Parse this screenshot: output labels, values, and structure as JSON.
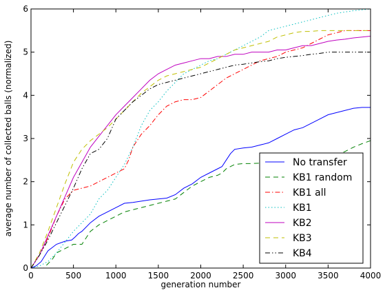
{
  "chart_data": {
    "type": "line",
    "title": "",
    "xlabel": "generation number",
    "ylabel": "average number of collected balls (normalized)",
    "xlim": [
      0,
      4000
    ],
    "ylim": [
      0,
      6
    ],
    "xticks": [
      0,
      500,
      1000,
      1500,
      2000,
      2500,
      3000,
      3500,
      4000
    ],
    "yticks": [
      0,
      1,
      2,
      3,
      4,
      5,
      6
    ],
    "grid": false,
    "legend_position": "lower-right",
    "series": [
      {
        "name": "No transfer",
        "color": "#0000ff",
        "dash": "solid",
        "x": [
          0,
          60,
          120,
          200,
          300,
          400,
          480,
          520,
          560,
          600,
          700,
          800,
          900,
          1000,
          1100,
          1200,
          1300,
          1400,
          1500,
          1600,
          1700,
          1800,
          1900,
          2000,
          2100,
          2200,
          2250,
          2300,
          2350,
          2400,
          2500,
          2600,
          2700,
          2800,
          2900,
          3000,
          3100,
          3200,
          3300,
          3400,
          3500,
          3600,
          3700,
          3800,
          3900,
          4000
        ],
        "y": [
          0.0,
          0.05,
          0.15,
          0.4,
          0.55,
          0.62,
          0.65,
          0.72,
          0.8,
          0.85,
          1.05,
          1.2,
          1.3,
          1.4,
          1.5,
          1.52,
          1.55,
          1.58,
          1.6,
          1.62,
          1.7,
          1.85,
          1.95,
          2.1,
          2.2,
          2.3,
          2.35,
          2.5,
          2.65,
          2.75,
          2.78,
          2.8,
          2.85,
          2.9,
          3.0,
          3.1,
          3.2,
          3.25,
          3.35,
          3.45,
          3.55,
          3.6,
          3.65,
          3.7,
          3.72,
          3.72
        ]
      },
      {
        "name": "KB1 random",
        "color": "#008000",
        "dash": "dashed",
        "x": [
          0,
          150,
          200,
          250,
          300,
          400,
          500,
          600,
          650,
          700,
          800,
          900,
          1000,
          1100,
          1200,
          1300,
          1400,
          1500,
          1600,
          1700,
          1800,
          1900,
          2000,
          2100,
          2200,
          2250,
          2300,
          2350,
          2400,
          2500,
          2600,
          2700,
          2800,
          2900,
          3000,
          3100,
          3200,
          3300,
          3400,
          3500,
          3600,
          3700,
          3800,
          3900,
          4000
        ],
        "y": [
          0.0,
          0.0,
          0.1,
          0.2,
          0.35,
          0.45,
          0.55,
          0.55,
          0.7,
          0.85,
          1.0,
          1.1,
          1.2,
          1.3,
          1.35,
          1.4,
          1.45,
          1.5,
          1.55,
          1.6,
          1.75,
          1.9,
          2.0,
          2.1,
          2.15,
          2.2,
          2.3,
          2.35,
          2.4,
          2.42,
          2.42,
          2.43,
          2.45,
          2.45,
          2.45,
          2.45,
          2.48,
          2.5,
          2.52,
          2.55,
          2.6,
          2.7,
          2.8,
          2.88,
          2.95
        ]
      },
      {
        "name": "KB1 all",
        "color": "#ff0000",
        "dash": "dashdot",
        "x": [
          0,
          100,
          200,
          300,
          400,
          500,
          600,
          700,
          800,
          900,
          1000,
          1100,
          1150,
          1200,
          1300,
          1400,
          1500,
          1600,
          1700,
          1800,
          1900,
          2000,
          2100,
          2200,
          2300,
          2400,
          2500,
          2600,
          2700,
          2800,
          2900,
          3000,
          3100,
          3200,
          3300,
          3400,
          3500,
          3600,
          3700,
          3800,
          3900,
          4000
        ],
        "y": [
          0.0,
          0.3,
          0.7,
          1.2,
          1.6,
          1.8,
          1.85,
          1.9,
          2.0,
          2.1,
          2.2,
          2.3,
          2.5,
          2.8,
          3.1,
          3.3,
          3.55,
          3.75,
          3.85,
          3.9,
          3.9,
          3.95,
          4.1,
          4.25,
          4.4,
          4.5,
          4.6,
          4.7,
          4.8,
          4.85,
          4.9,
          5.0,
          5.05,
          5.1,
          5.2,
          5.3,
          5.4,
          5.45,
          5.5,
          5.5,
          5.5,
          5.5
        ]
      },
      {
        "name": "KB1",
        "color": "#00bfbf",
        "dash": "dotted",
        "x": [
          0,
          100,
          200,
          300,
          400,
          500,
          600,
          700,
          800,
          900,
          1000,
          1100,
          1200,
          1300,
          1400,
          1500,
          1600,
          1700,
          1800,
          1900,
          2000,
          2100,
          2200,
          2300,
          2400,
          2500,
          2600,
          2700,
          2800,
          2900,
          3000,
          3100,
          3200,
          3300,
          3400,
          3500,
          3600,
          3700,
          3800,
          3900,
          4000
        ],
        "y": [
          0.0,
          0.05,
          0.15,
          0.35,
          0.6,
          0.85,
          1.05,
          1.25,
          1.6,
          1.8,
          2.1,
          2.4,
          2.8,
          3.3,
          3.65,
          3.85,
          4.1,
          4.3,
          4.5,
          4.6,
          4.7,
          4.8,
          4.85,
          4.95,
          5.05,
          5.15,
          5.25,
          5.35,
          5.5,
          5.55,
          5.6,
          5.65,
          5.7,
          5.75,
          5.8,
          5.85,
          5.9,
          5.93,
          5.96,
          5.98,
          6.0
        ]
      },
      {
        "name": "KB2",
        "color": "#bf00bf",
        "dash": "solid",
        "x": [
          0,
          100,
          200,
          300,
          400,
          500,
          600,
          700,
          800,
          900,
          1000,
          1100,
          1200,
          1300,
          1400,
          1500,
          1600,
          1700,
          1800,
          1900,
          2000,
          2100,
          2200,
          2300,
          2400,
          2500,
          2600,
          2700,
          2800,
          2900,
          3000,
          3100,
          3200,
          3300,
          3400,
          3500,
          3600,
          3700,
          3800,
          3900,
          4000
        ],
        "y": [
          0.0,
          0.3,
          0.75,
          1.2,
          1.65,
          2.1,
          2.45,
          2.8,
          3.05,
          3.3,
          3.55,
          3.75,
          3.95,
          4.15,
          4.35,
          4.5,
          4.6,
          4.7,
          4.75,
          4.8,
          4.85,
          4.85,
          4.9,
          4.9,
          4.95,
          4.95,
          5.0,
          5.0,
          5.0,
          5.05,
          5.05,
          5.1,
          5.15,
          5.15,
          5.2,
          5.25,
          5.28,
          5.3,
          5.33,
          5.35,
          5.37
        ]
      },
      {
        "name": "KB3",
        "color": "#bfbf00",
        "dash": "dashed",
        "x": [
          0,
          100,
          200,
          300,
          400,
          500,
          600,
          700,
          800,
          900,
          1000,
          1100,
          1200,
          1300,
          1400,
          1500,
          1600,
          1700,
          1800,
          1900,
          2000,
          2100,
          2200,
          2300,
          2400,
          2500,
          2600,
          2700,
          2800,
          2900,
          3000,
          3100,
          3200,
          3300,
          3400,
          3500,
          3600,
          3700,
          3800,
          3900,
          4000
        ],
        "y": [
          0.0,
          0.35,
          0.85,
          1.4,
          1.95,
          2.45,
          2.75,
          2.95,
          3.1,
          3.25,
          3.45,
          3.65,
          3.85,
          4.05,
          4.2,
          4.35,
          4.45,
          4.5,
          4.55,
          4.6,
          4.65,
          4.75,
          4.85,
          4.95,
          5.05,
          5.1,
          5.15,
          5.2,
          5.25,
          5.35,
          5.4,
          5.45,
          5.48,
          5.48,
          5.5,
          5.5,
          5.5,
          5.5,
          5.5,
          5.5,
          5.5
        ]
      },
      {
        "name": "KB4",
        "color": "#000000",
        "dash": "dashdotdot",
        "x": [
          0,
          100,
          200,
          300,
          400,
          500,
          600,
          700,
          800,
          900,
          1000,
          1100,
          1200,
          1300,
          1400,
          1500,
          1600,
          1700,
          1800,
          1900,
          2000,
          2100,
          2200,
          2300,
          2400,
          2500,
          2600,
          2700,
          2800,
          2900,
          3000,
          3100,
          3200,
          3300,
          3400,
          3500,
          3600,
          3700,
          3800,
          3900,
          4000
        ],
        "y": [
          0.0,
          0.3,
          0.65,
          1.05,
          1.45,
          1.85,
          2.3,
          2.65,
          2.75,
          3.0,
          3.45,
          3.65,
          3.85,
          4.0,
          4.15,
          4.25,
          4.3,
          4.35,
          4.4,
          4.45,
          4.5,
          4.55,
          4.6,
          4.65,
          4.7,
          4.72,
          4.75,
          4.78,
          4.8,
          4.85,
          4.88,
          4.9,
          4.92,
          4.95,
          4.97,
          5.0,
          5.0,
          5.0,
          5.0,
          5.0,
          5.0
        ]
      }
    ]
  }
}
